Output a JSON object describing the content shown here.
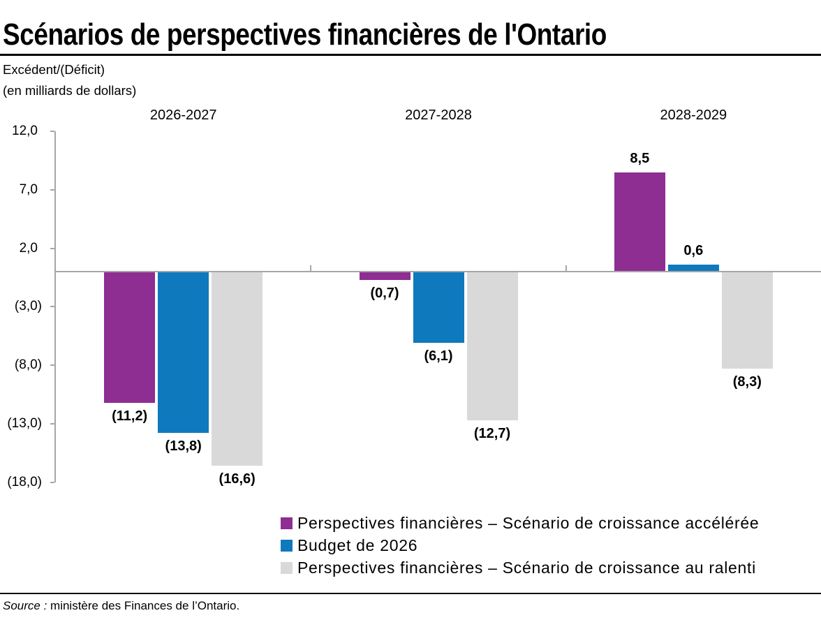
{
  "title": "Scénarios de perspectives financières de l'Ontario",
  "y_axis": {
    "title_line1": "Excédent/(Déficit)",
    "title_line2": "(en milliards de dollars)",
    "ticks": [
      {
        "value": 12,
        "label": "12,0"
      },
      {
        "value": 7,
        "label": "7,0"
      },
      {
        "value": 2,
        "label": "2,0"
      },
      {
        "value": -3,
        "label": "(3,0)"
      },
      {
        "value": -8,
        "label": "(8,0)"
      },
      {
        "value": -13,
        "label": "(13,0)"
      },
      {
        "value": -18,
        "label": "(18,0)"
      }
    ]
  },
  "source": {
    "prefix": "Source :",
    "text": " ministère des Finances de l’Ontario."
  },
  "colors": {
    "accelerated": "#8e2d92",
    "budget": "#0f79bd",
    "slowed": "#d9d9d9",
    "axis": "#a6a6a6"
  },
  "chart_data": {
    "type": "bar",
    "title": "Scénarios de perspectives financières de l'Ontario",
    "categories": [
      "2026-2027",
      "2027-2028",
      "2028-2029"
    ],
    "series": [
      {
        "name": "Perspectives financières – Scénario de croissance accélérée",
        "color": "#8e2d92",
        "values": [
          -11.2,
          -0.7,
          8.5
        ],
        "data_labels": [
          "(11,2)",
          "(0,7)",
          "8,5"
        ]
      },
      {
        "name": "Budget de 2026",
        "color": "#0f79bd",
        "values": [
          -13.8,
          -6.1,
          0.6
        ],
        "data_labels": [
          "(13,8)",
          "(6,1)",
          "0,6"
        ]
      },
      {
        "name": "Perspectives financières – Scénario de croissance au ralenti",
        "color": "#d9d9d9",
        "values": [
          -16.6,
          -12.7,
          -8.3
        ],
        "data_labels": [
          "(16,6)",
          "(12,7)",
          "(8,3)"
        ]
      }
    ],
    "ylim": [
      -18,
      12
    ],
    "ylabel": "Excédent/(Déficit) (en milliards de dollars)",
    "grid": false,
    "legend_position": "bottom"
  }
}
